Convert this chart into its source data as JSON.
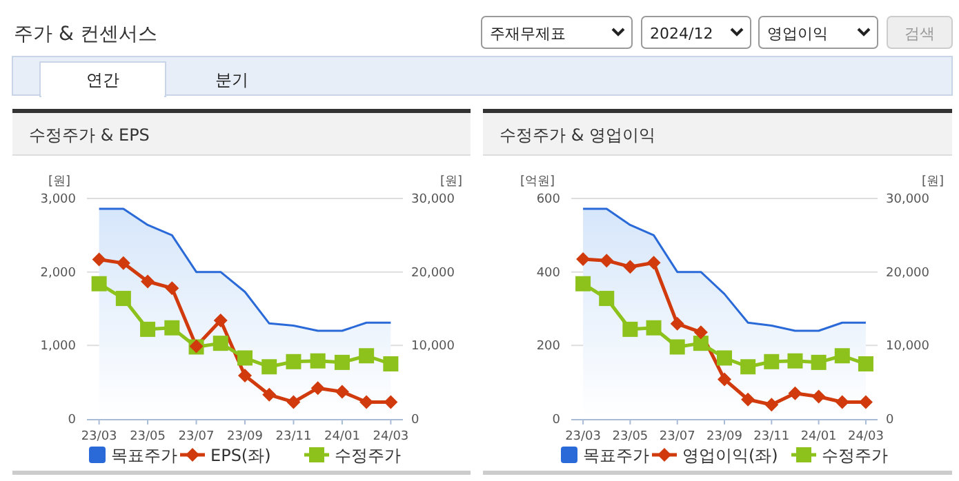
{
  "chart_data": [
    {
      "type": "other",
      "title": "주가 & 컨센서스",
      "annotations": [
        "주재무제표",
        "2024/12",
        "영업이익",
        "검색",
        "연간",
        "분기"
      ]
    },
    {
      "type": "line",
      "title": "수정주가 & EPS",
      "ylabel": "[원]",
      "y2label": "[원]",
      "categories": [
        "23/03",
        null,
        "23/05",
        null,
        "23/07",
        null,
        "23/09",
        null,
        "23/11",
        null,
        "24/01",
        null,
        "24/03"
      ],
      "series": [
        {
          "name": "목표주가",
          "type": "area",
          "axis": "y2",
          "color": "#2a6ad8",
          "values": [
            28600,
            28600,
            26400,
            25000,
            20000,
            20000,
            17300,
            13000,
            12700,
            12000,
            12000,
            13100,
            13100
          ]
        },
        {
          "name": "EPS(좌)",
          "type": "line",
          "color": "#d03a0c",
          "marker": "diamond",
          "values": [
            2170,
            2120,
            1870,
            1780,
            990,
            1340,
            590,
            330,
            230,
            420,
            370,
            230,
            230
          ]
        },
        {
          "name": "수정주가",
          "type": "line",
          "axis": "y2",
          "color": "#8cc21b",
          "marker": "square",
          "values": [
            18400,
            16400,
            12200,
            12400,
            9800,
            10300,
            8300,
            7100,
            7800,
            7900,
            7700,
            8600,
            7500
          ]
        }
      ],
      "ylim": [
        0,
        3000
      ],
      "yticks": [
        0,
        {
          "value": 1000,
          "label": "1,000"
        },
        {
          "value": 2000,
          "label": "2,000"
        },
        {
          "value": 3000,
          "label": "3,000"
        }
      ],
      "y2lim": [
        0,
        30000
      ],
      "y2ticks": [
        0,
        {
          "value": 10000,
          "label": "10,000"
        },
        {
          "value": 20000,
          "label": "20,000"
        },
        {
          "value": 30000,
          "label": "30,000"
        }
      ],
      "grid": "y",
      "legend": "bottom"
    },
    {
      "type": "line",
      "title": "수정주가 & 영업이익",
      "ylabel": "[억원]",
      "y2label": "[원]",
      "categories": [
        "23/03",
        null,
        "23/05",
        null,
        "23/07",
        null,
        "23/09",
        null,
        "23/11",
        null,
        "24/01",
        null,
        "24/03"
      ],
      "series": [
        {
          "name": "목표주가",
          "type": "area",
          "axis": "y2",
          "color": "#2a6ad8",
          "values": [
            28600,
            28600,
            26400,
            25000,
            20000,
            20000,
            17000,
            13100,
            12700,
            12000,
            12000,
            13100,
            13100
          ]
        },
        {
          "name": "영업이익(좌)",
          "type": "line",
          "color": "#d03a0c",
          "marker": "diamond",
          "values": [
            435,
            431,
            414,
            425,
            259,
            236,
            108,
            53,
            39,
            70,
            61,
            46,
            46
          ]
        },
        {
          "name": "수정주가",
          "type": "line",
          "axis": "y2",
          "color": "#8cc21b",
          "marker": "square",
          "values": [
            18400,
            16400,
            12200,
            12400,
            9800,
            10300,
            8300,
            7100,
            7800,
            7900,
            7700,
            8600,
            7500
          ]
        }
      ],
      "ylim": [
        0,
        600
      ],
      "yticks": [
        0,
        200,
        400,
        600
      ],
      "y2lim": [
        0,
        30000
      ],
      "y2ticks": [
        0,
        {
          "value": 10000,
          "label": "10,000"
        },
        {
          "value": 20000,
          "label": "20,000"
        },
        {
          "value": 30000,
          "label": "30,000"
        }
      ],
      "grid": "y",
      "legend": "bottom"
    }
  ]
}
